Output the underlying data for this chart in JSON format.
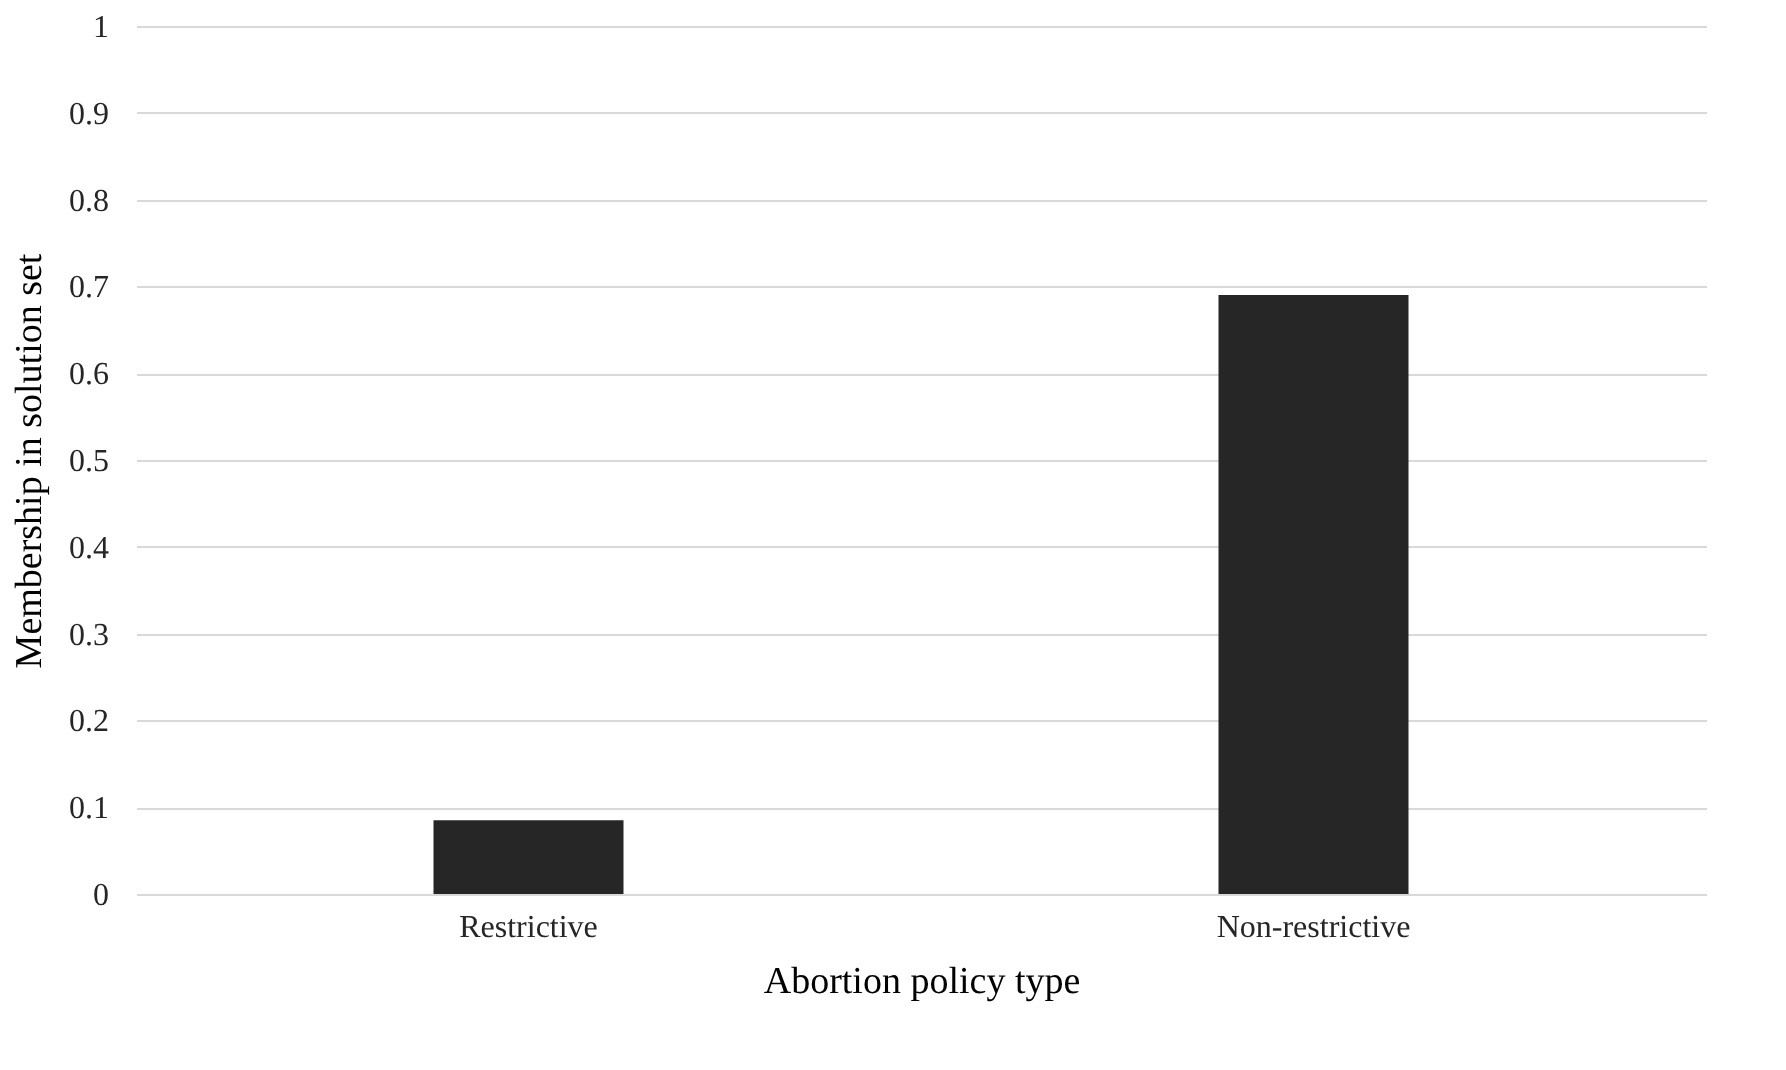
{
  "chart_data": {
    "type": "bar",
    "xlabel": "Abortion policy type",
    "ylabel": "Membership in solution set",
    "categories": [
      "Restrictive",
      "Non-restrictive"
    ],
    "values": [
      0.085,
      0.69
    ],
    "color": "#262626",
    "ylim": [
      0,
      1
    ],
    "yticks": [
      0,
      0.1,
      0.2,
      0.3,
      0.4,
      0.5,
      0.6,
      0.7,
      0.8,
      0.9,
      1
    ],
    "grid": "y"
  }
}
